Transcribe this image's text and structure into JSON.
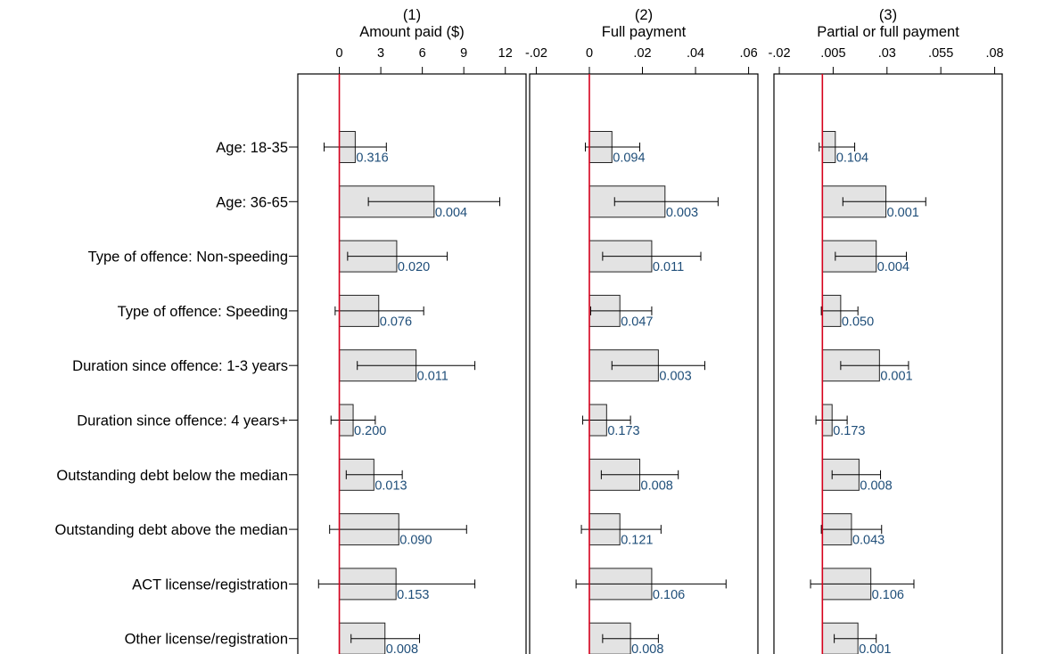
{
  "colors": {
    "bar_fill": "#e3e3e3",
    "bar_stroke": "#222222",
    "zero_line": "#d6001c",
    "pvalue_text": "#1f4e79",
    "text": "#000000"
  },
  "categories": [
    "Age: 18-35",
    "Age: 36-65",
    "Type of offence: Non-speeding",
    "Type of offence: Speeding",
    "Duration since offence: 1-3 years",
    "Duration since offence: 4 years+",
    "Outstanding debt below the median",
    "Outstanding debt above the median",
    "ACT license/registration",
    "Other license/registration"
  ],
  "chart_data": [
    {
      "type": "bar",
      "orientation": "horizontal",
      "number": "(1)",
      "title": "Amount paid ($)",
      "xlim": [
        -3,
        13.5
      ],
      "xticks": [
        0,
        3,
        6,
        9,
        12
      ],
      "xtick_labels": [
        "0",
        "3",
        "6",
        "9",
        "12"
      ],
      "values": [
        1.15,
        6.85,
        4.15,
        2.85,
        5.55,
        1.0,
        2.5,
        4.3,
        4.1,
        3.3
      ],
      "ci_low": [
        -1.1,
        2.1,
        0.6,
        -0.3,
        1.3,
        -0.6,
        0.5,
        -0.7,
        -1.5,
        0.85
      ],
      "ci_high": [
        3.4,
        11.6,
        7.8,
        6.1,
        9.8,
        2.6,
        4.55,
        9.2,
        9.8,
        5.8
      ],
      "p_values": [
        "0.316",
        "0.004",
        "0.020",
        "0.076",
        "0.011",
        "0.200",
        "0.013",
        "0.090",
        "0.153",
        "0.008"
      ]
    },
    {
      "type": "bar",
      "orientation": "horizontal",
      "number": "(2)",
      "title": "Full payment",
      "xlim": [
        -0.0225,
        0.0635
      ],
      "xticks": [
        -0.02,
        0,
        0.02,
        0.04,
        0.06
      ],
      "xtick_labels": [
        "-.02",
        "0",
        ".02",
        ".04",
        ".06"
      ],
      "values": [
        0.0085,
        0.0285,
        0.0235,
        0.0115,
        0.026,
        0.0065,
        0.019,
        0.0115,
        0.0235,
        0.0155
      ],
      "ci_low": [
        -0.0015,
        0.0095,
        0.005,
        0.0005,
        0.0085,
        -0.0025,
        0.0045,
        -0.003,
        -0.005,
        0.005
      ],
      "ci_high": [
        0.019,
        0.0485,
        0.042,
        0.0235,
        0.0435,
        0.0155,
        0.0335,
        0.027,
        0.0515,
        0.026
      ],
      "p_values": [
        "0.094",
        "0.003",
        "0.011",
        "0.047",
        "0.003",
        "0.173",
        "0.008",
        "0.121",
        "0.106",
        "0.008"
      ]
    },
    {
      "type": "bar",
      "orientation": "horizontal",
      "number": "(3)",
      "title": "Partial or full payment",
      "xlim": [
        -0.0225,
        0.0835
      ],
      "xticks": [
        -0.02,
        0.005,
        0.03,
        0.055,
        0.08
      ],
      "xtick_labels": [
        "-.02",
        ".005",
        ".03",
        ".055",
        ".08"
      ],
      "values": [
        0.006,
        0.0295,
        0.025,
        0.0085,
        0.0265,
        0.0045,
        0.017,
        0.0135,
        0.0225,
        0.0165
      ],
      "ci_low": [
        -0.0015,
        0.0095,
        0.006,
        -0.0005,
        0.0085,
        -0.003,
        0.0045,
        -0.0005,
        -0.0055,
        0.0055
      ],
      "ci_high": [
        0.015,
        0.048,
        0.039,
        0.0165,
        0.04,
        0.0115,
        0.027,
        0.0275,
        0.0425,
        0.025
      ],
      "p_values": [
        "0.104",
        "0.001",
        "0.004",
        "0.050",
        "0.001",
        "0.173",
        "0.008",
        "0.043",
        "0.106",
        "0.001"
      ]
    }
  ]
}
